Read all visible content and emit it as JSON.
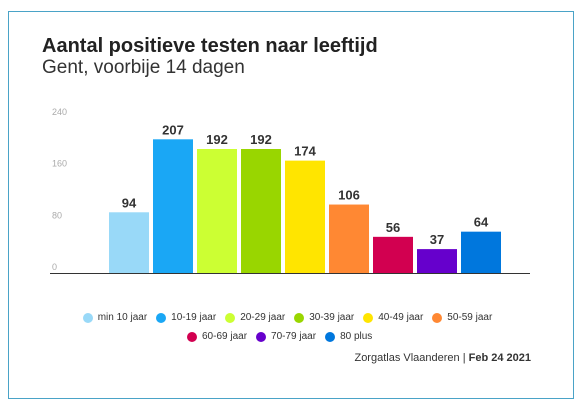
{
  "chart_data": {
    "type": "bar",
    "title": "Aantal positieve testen naar leeftijd",
    "subtitle": "Gent, voorbije 14 dagen",
    "categories": [
      "min 10 jaar",
      "10-19 jaar",
      "20-29 jaar",
      "30-39 jaar",
      "40-49 jaar",
      "50-59 jaar",
      "60-69 jaar",
      "70-79 jaar",
      "80 plus"
    ],
    "values": [
      94,
      207,
      192,
      192,
      174,
      106,
      56,
      37,
      64
    ],
    "colors": [
      "#99d9f8",
      "#1aa7f5",
      "#ccff33",
      "#99d600",
      "#ffe500",
      "#ff8833",
      "#d20050",
      "#6600cc",
      "#0077dd"
    ],
    "ylim": [
      0,
      240
    ],
    "yticks": [
      "0",
      "80",
      "160",
      "240"
    ],
    "xlabel": "",
    "ylabel": "",
    "grid": false,
    "legend": "bottom"
  },
  "source": {
    "text": "Zorgatlas Vlaanderen | ",
    "date": "Feb 24 2021"
  }
}
